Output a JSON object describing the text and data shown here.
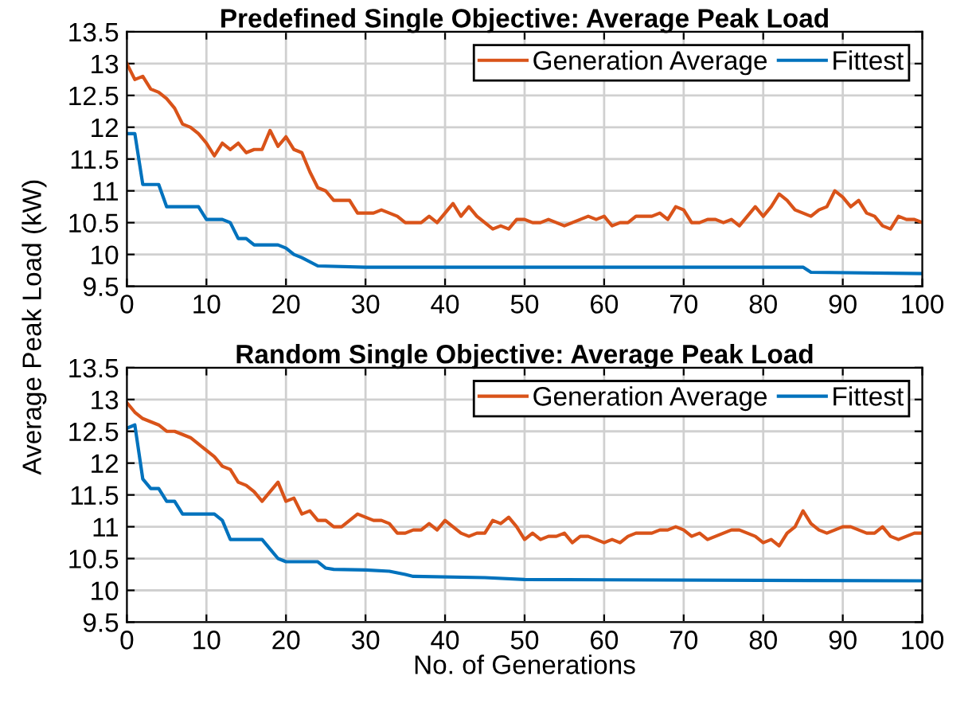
{
  "chart_data": [
    {
      "type": "line",
      "title": "Predefined Single Objective: Average Peak Load",
      "ylabel": "Average Peak Load (kW)",
      "xlim": [
        0,
        100
      ],
      "ylim": [
        9.5,
        13.5
      ],
      "xticks": [
        0,
        10,
        20,
        30,
        40,
        50,
        60,
        70,
        80,
        90,
        100
      ],
      "yticks": [
        9.5,
        10,
        10.5,
        11,
        11.5,
        12,
        12.5,
        13,
        13.5
      ],
      "grid": true,
      "legend": "top right",
      "series": [
        {
          "name": "Generation Average",
          "color": "#d95319",
          "x": [
            0,
            1,
            2,
            3,
            4,
            5,
            6,
            7,
            8,
            9,
            10,
            11,
            12,
            13,
            14,
            15,
            16,
            17,
            18,
            19,
            20,
            21,
            22,
            23,
            24,
            25,
            26,
            27,
            28,
            29,
            30,
            31,
            32,
            33,
            34,
            35,
            36,
            37,
            38,
            39,
            40,
            41,
            42,
            43,
            44,
            45,
            46,
            47,
            48,
            49,
            50,
            51,
            52,
            53,
            54,
            55,
            56,
            57,
            58,
            59,
            60,
            61,
            62,
            63,
            64,
            65,
            66,
            67,
            68,
            69,
            70,
            71,
            72,
            73,
            74,
            75,
            76,
            77,
            78,
            79,
            80,
            81,
            82,
            83,
            84,
            85,
            86,
            87,
            88,
            89,
            90,
            91,
            92,
            93,
            94,
            95,
            96,
            97,
            98,
            99,
            100
          ],
          "values": [
            13.0,
            12.75,
            12.8,
            12.6,
            12.55,
            12.45,
            12.3,
            12.05,
            12.0,
            11.9,
            11.75,
            11.55,
            11.75,
            11.65,
            11.75,
            11.6,
            11.65,
            11.65,
            11.95,
            11.7,
            11.85,
            11.65,
            11.6,
            11.3,
            11.05,
            11.0,
            10.85,
            10.85,
            10.85,
            10.65,
            10.65,
            10.65,
            10.7,
            10.65,
            10.6,
            10.5,
            10.5,
            10.5,
            10.6,
            10.5,
            10.65,
            10.8,
            10.6,
            10.75,
            10.6,
            10.5,
            10.4,
            10.45,
            10.4,
            10.55,
            10.55,
            10.5,
            10.5,
            10.55,
            10.5,
            10.45,
            10.5,
            10.55,
            10.6,
            10.55,
            10.6,
            10.45,
            10.5,
            10.5,
            10.6,
            10.6,
            10.6,
            10.65,
            10.55,
            10.75,
            10.7,
            10.5,
            10.5,
            10.55,
            10.55,
            10.5,
            10.55,
            10.45,
            10.6,
            10.75,
            10.6,
            10.75,
            10.95,
            10.85,
            10.7,
            10.65,
            10.6,
            10.7,
            10.75,
            11.0,
            10.9,
            10.75,
            10.85,
            10.65,
            10.6,
            10.45,
            10.4,
            10.6,
            10.55,
            10.55,
            10.5
          ]
        },
        {
          "name": "Fittest",
          "color": "#0072bd",
          "x": [
            0,
            1,
            2,
            4,
            5,
            9,
            10,
            12,
            13,
            14,
            15,
            16,
            19,
            20,
            21,
            22,
            24,
            30,
            85,
            86,
            100
          ],
          "values": [
            11.9,
            11.9,
            11.1,
            11.1,
            10.75,
            10.75,
            10.55,
            10.55,
            10.5,
            10.25,
            10.25,
            10.15,
            10.15,
            10.1,
            10.0,
            9.95,
            9.82,
            9.8,
            9.8,
            9.72,
            9.7
          ]
        }
      ]
    },
    {
      "type": "line",
      "title": "Random Single Objective: Average Peak Load",
      "xlabel": "No. of Generations",
      "xlim": [
        0,
        100
      ],
      "ylim": [
        9.5,
        13.5
      ],
      "xticks": [
        0,
        10,
        20,
        30,
        40,
        50,
        60,
        70,
        80,
        90,
        100
      ],
      "yticks": [
        9.5,
        10,
        10.5,
        11,
        11.5,
        12,
        12.5,
        13,
        13.5
      ],
      "grid": true,
      "legend": "top right",
      "series": [
        {
          "name": "Generation Average",
          "color": "#d95319",
          "x": [
            0,
            1,
            2,
            3,
            4,
            5,
            6,
            7,
            8,
            9,
            10,
            11,
            12,
            13,
            14,
            15,
            16,
            17,
            18,
            19,
            20,
            21,
            22,
            23,
            24,
            25,
            26,
            27,
            28,
            29,
            30,
            31,
            32,
            33,
            34,
            35,
            36,
            37,
            38,
            39,
            40,
            41,
            42,
            43,
            44,
            45,
            46,
            47,
            48,
            49,
            50,
            51,
            52,
            53,
            54,
            55,
            56,
            57,
            58,
            59,
            60,
            61,
            62,
            63,
            64,
            65,
            66,
            67,
            68,
            69,
            70,
            71,
            72,
            73,
            74,
            75,
            76,
            77,
            78,
            79,
            80,
            81,
            82,
            83,
            84,
            85,
            86,
            87,
            88,
            89,
            90,
            91,
            92,
            93,
            94,
            95,
            96,
            97,
            98,
            99,
            100
          ],
          "values": [
            12.95,
            12.8,
            12.7,
            12.65,
            12.6,
            12.5,
            12.5,
            12.45,
            12.4,
            12.3,
            12.2,
            12.1,
            11.95,
            11.9,
            11.7,
            11.65,
            11.55,
            11.4,
            11.55,
            11.7,
            11.4,
            11.45,
            11.2,
            11.25,
            11.1,
            11.1,
            11.0,
            11.0,
            11.1,
            11.2,
            11.15,
            11.1,
            11.1,
            11.05,
            10.9,
            10.9,
            10.95,
            10.95,
            11.05,
            10.95,
            11.1,
            11.0,
            10.9,
            10.85,
            10.9,
            10.9,
            11.1,
            11.05,
            11.15,
            11.0,
            10.8,
            10.9,
            10.8,
            10.85,
            10.85,
            10.9,
            10.75,
            10.85,
            10.85,
            10.8,
            10.75,
            10.8,
            10.75,
            10.85,
            10.9,
            10.9,
            10.9,
            10.95,
            10.95,
            11.0,
            10.95,
            10.85,
            10.9,
            10.8,
            10.85,
            10.9,
            10.95,
            10.95,
            10.9,
            10.85,
            10.75,
            10.8,
            10.7,
            10.9,
            11.0,
            11.25,
            11.05,
            10.95,
            10.9,
            10.95,
            11.0,
            11.0,
            10.95,
            10.9,
            10.9,
            11.0,
            10.85,
            10.8,
            10.85,
            10.9,
            10.9
          ]
        },
        {
          "name": "Fittest",
          "color": "#0072bd",
          "x": [
            0,
            1,
            2,
            3,
            4,
            5,
            6,
            7,
            11,
            12,
            13,
            17,
            18,
            19,
            20,
            24,
            25,
            26,
            30,
            33,
            35,
            36,
            45,
            50,
            100
          ],
          "values": [
            12.55,
            12.6,
            11.75,
            11.6,
            11.6,
            11.4,
            11.4,
            11.2,
            11.2,
            11.1,
            10.8,
            10.8,
            10.65,
            10.5,
            10.45,
            10.45,
            10.35,
            10.33,
            10.32,
            10.3,
            10.25,
            10.22,
            10.2,
            10.17,
            10.15
          ]
        }
      ]
    }
  ]
}
